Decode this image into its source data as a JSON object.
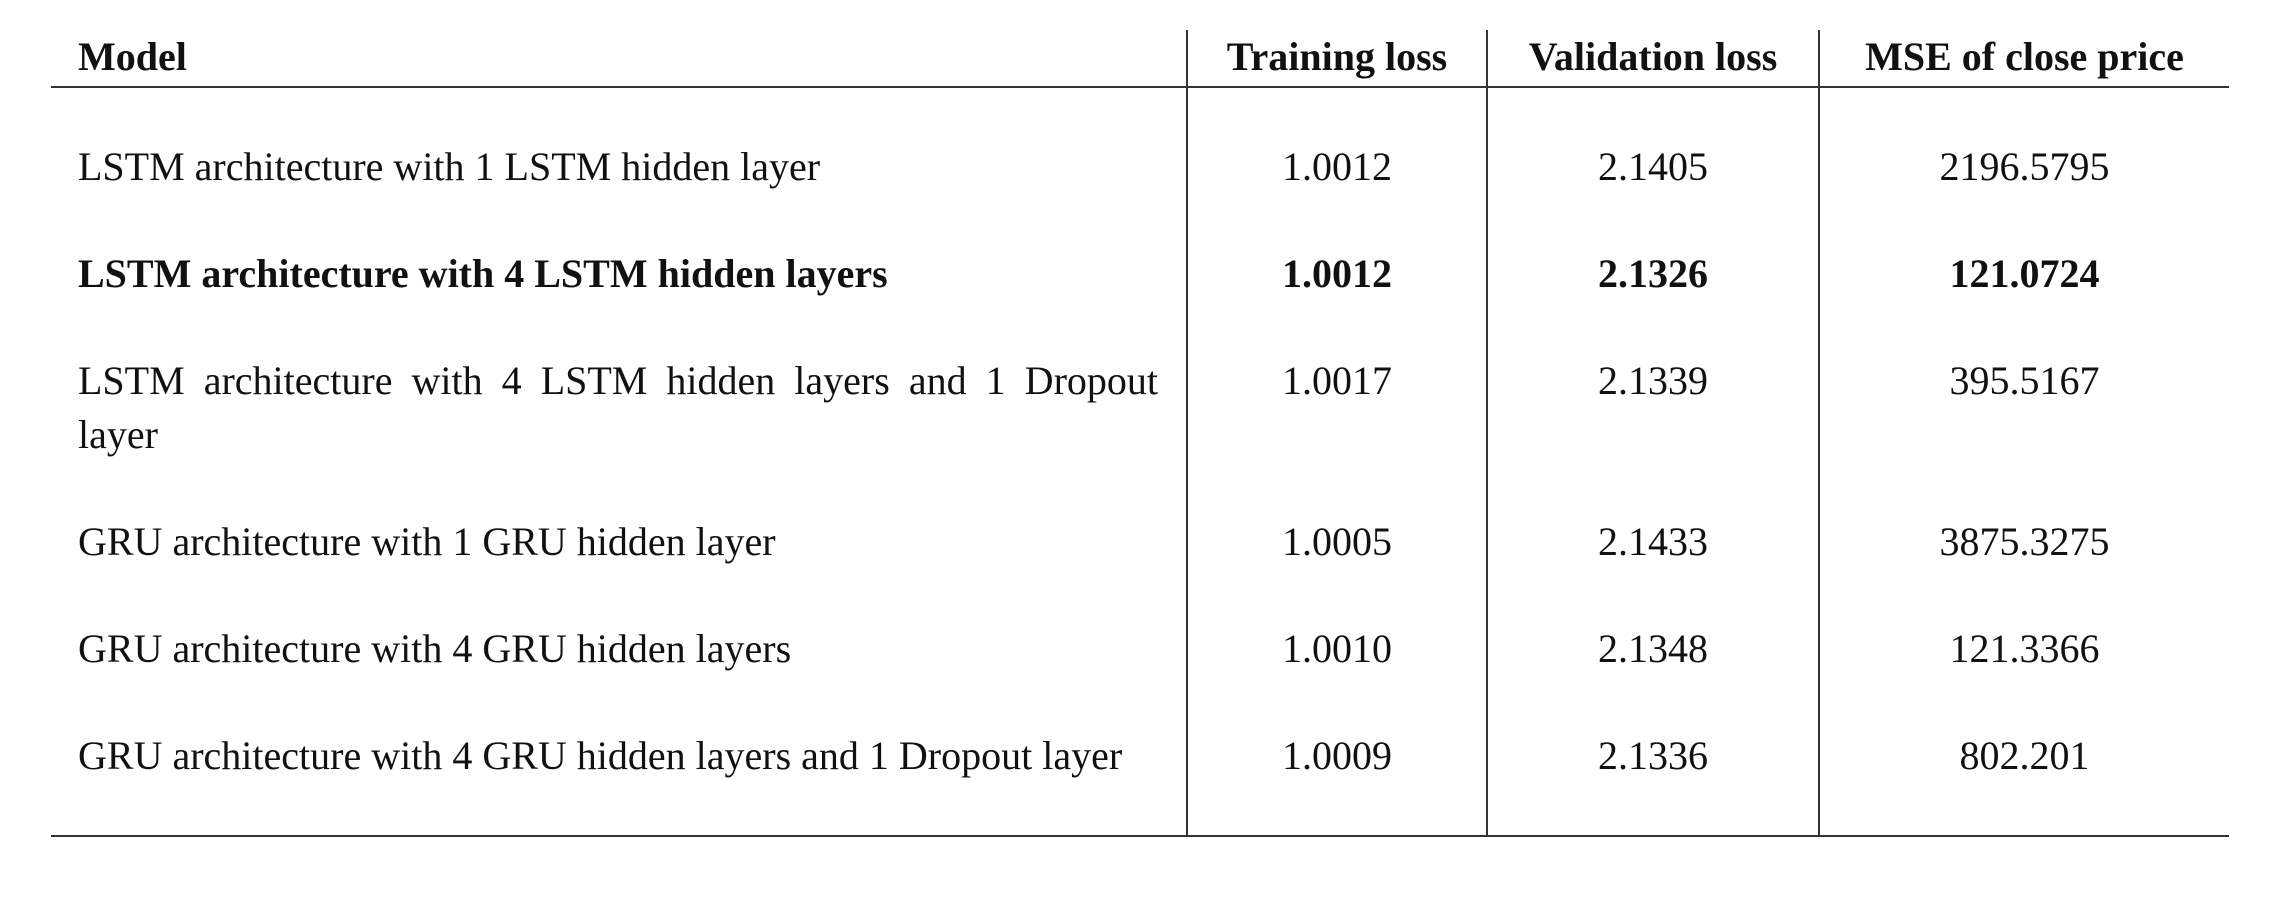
{
  "table": {
    "headers": {
      "model": "Model",
      "training_loss": "Training loss",
      "validation_loss": "Validation loss",
      "mse": "MSE of close price"
    },
    "rows": [
      {
        "model": "LSTM architecture with 1 LSTM hidden layer",
        "training_loss": "1.0012",
        "validation_loss": "2.1405",
        "mse": "2196.5795",
        "bold": false
      },
      {
        "model": "LSTM architecture with 4 LSTM hidden layers",
        "training_loss": "1.0012",
        "validation_loss": "2.1326",
        "mse": "121.0724",
        "bold": true
      },
      {
        "model": "LSTM architecture with 4 LSTM hidden layers and 1 Dropout layer",
        "training_loss": "1.0017",
        "validation_loss": "2.1339",
        "mse": "395.5167",
        "bold": false
      },
      {
        "model": "GRU architecture with 1 GRU hidden layer",
        "training_loss": "1.0005",
        "validation_loss": "2.1433",
        "mse": "3875.3275",
        "bold": false
      },
      {
        "model": "GRU architecture with 4 GRU hidden layers",
        "training_loss": "1.0010",
        "validation_loss": "2.1348",
        "mse": "121.3366",
        "bold": false
      },
      {
        "model": "GRU architecture with 4 GRU hidden layers and 1 Dropout layer",
        "training_loss": "1.0009",
        "validation_loss": "2.1336",
        "mse": "802.201",
        "bold": false
      }
    ]
  }
}
